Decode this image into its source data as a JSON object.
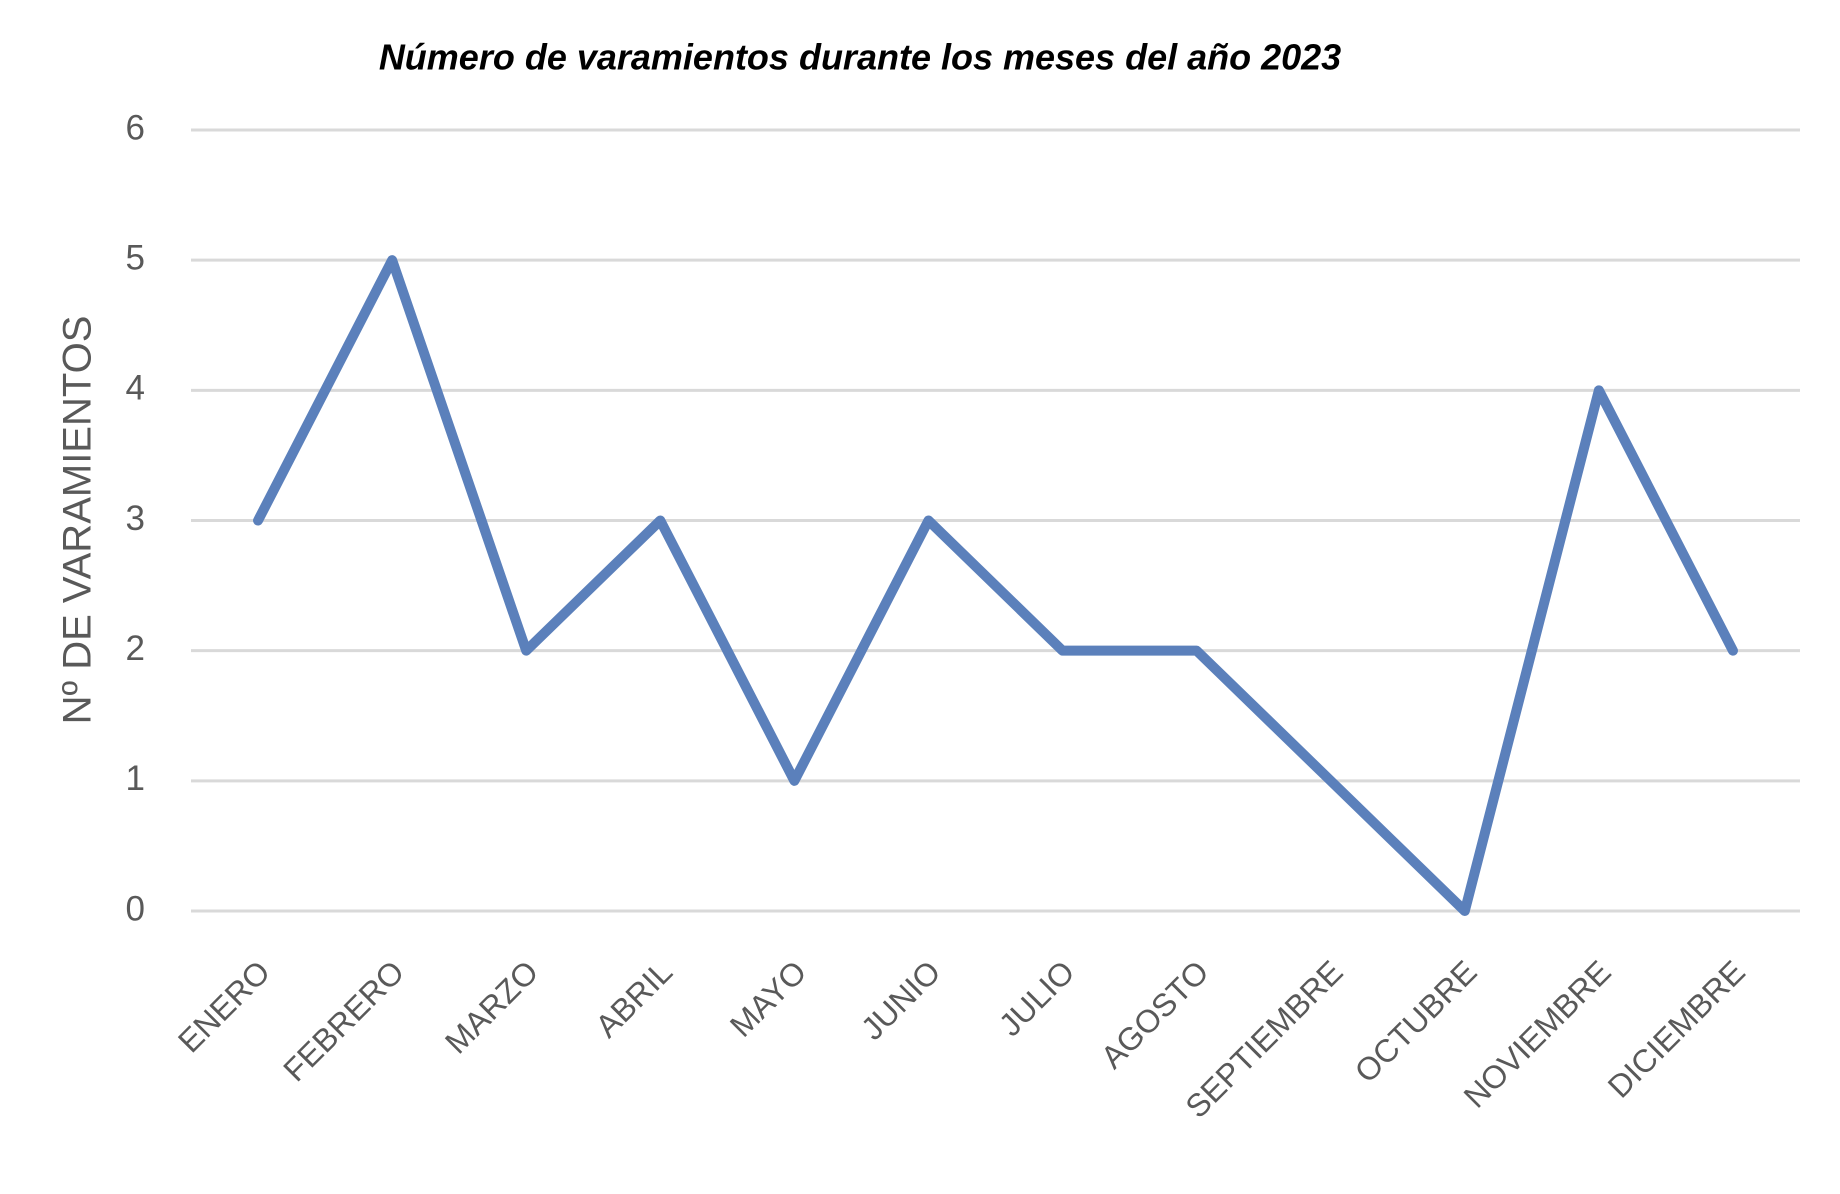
{
  "chart_data": {
    "type": "line",
    "title": "Número de varamientos durante los meses del año 2023",
    "y_label": "Nº DE VARAMIENTOS",
    "categories": [
      "ENERO",
      "FEBRERO",
      "MARZO",
      "ABRIL",
      "MAYO",
      "JUNIO",
      "JULIO",
      "AGOSTO",
      "SEPTIEMBRE",
      "OCTUBRE",
      "NOVIEMBRE",
      "DICIEMBRE"
    ],
    "values": [
      3,
      5,
      2,
      3,
      1,
      3,
      2,
      2,
      1,
      0,
      4,
      2
    ],
    "color": "#5b80bb",
    "ylim": [
      0,
      6
    ],
    "yticks": [
      0,
      1,
      2,
      3,
      4,
      5,
      6
    ],
    "grid": true
  }
}
